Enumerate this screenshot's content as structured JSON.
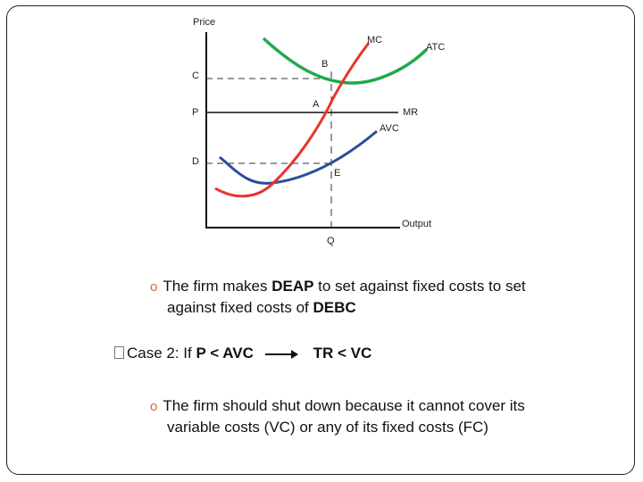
{
  "diagram": {
    "axis_labels": {
      "y": "Price",
      "x": "Output"
    },
    "price_levels": [
      "C",
      "P",
      "D"
    ],
    "point_labels": [
      "B",
      "A",
      "E"
    ],
    "quantity_label": "Q",
    "curve_labels": {
      "mc": "MC",
      "atc": "ATC",
      "mr": "MR",
      "avc": "AVC"
    },
    "colors": {
      "mc": "#e8342c",
      "atc": "#1faa4a",
      "avc": "#2b4d9a",
      "axis": "#111111"
    }
  },
  "bullet1": {
    "marker": "o",
    "line1_prefix": "The firm makes ",
    "line1_bold": "DEAP",
    "line1_suffix": " to set against fixed costs to set",
    "line2_prefix": "against fixed costs of ",
    "line2_bold": "DEBC"
  },
  "case2": {
    "label": "Case 2: If ",
    "condition": "P < AVC",
    "result": "TR < VC"
  },
  "bullet2": {
    "marker": "o",
    "line1": "The firm should shut down because it cannot cover its",
    "line2": "variable costs (VC) or any of its fixed costs (FC)"
  }
}
